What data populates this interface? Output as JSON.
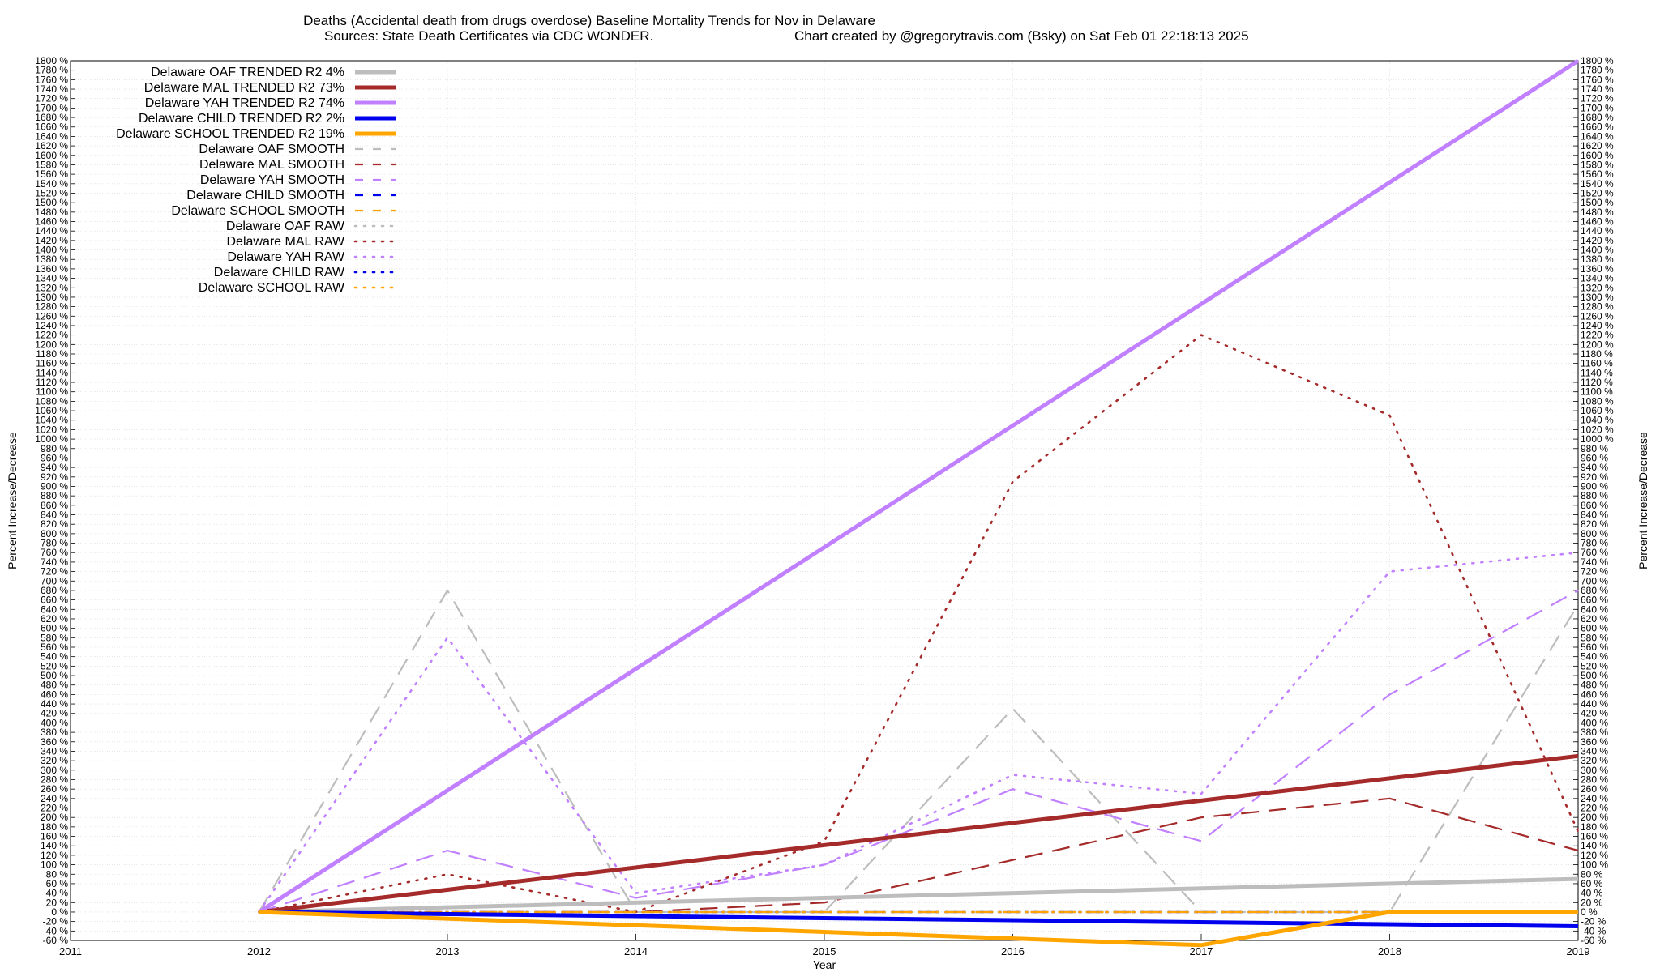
{
  "chart_data": {
    "type": "line",
    "title_line1": "Deaths (Accidental death from drugs overdose)  Baseline Mortality Trends for Nov in Delaware",
    "title_line2_left": "Sources: State Death Certificates via CDC WONDER.",
    "title_line2_right": "Chart created by @gregorytravis.com (Bsky) on Sat Feb 01 22:18:13 2025",
    "xlabel": "Year",
    "ylabel": "Percent Increase/Decrease",
    "xlim": [
      2011,
      2019
    ],
    "ylim": [
      -60,
      1800
    ],
    "x_ticks": [
      2011,
      2012,
      2013,
      2014,
      2015,
      2016,
      2017,
      2018,
      2019
    ],
    "y_tick_step": 20,
    "y_tick_suffix": " %",
    "series": [
      {
        "name": "Delaware OAF TRENDED R2  4%",
        "style": "solid",
        "color": "#bdbdbd",
        "x": [
          2012,
          2019
        ],
        "values": [
          0,
          70
        ]
      },
      {
        "name": "Delaware MAL TRENDED R2  73%",
        "style": "solid",
        "color": "#a52a2a",
        "x": [
          2012,
          2019
        ],
        "values": [
          0,
          330
        ]
      },
      {
        "name": "Delaware YAH TRENDED R2  74%",
        "style": "solid",
        "color": "#c080ff",
        "x": [
          2012,
          2019
        ],
        "values": [
          0,
          1800
        ]
      },
      {
        "name": "Delaware CHILD TRENDED R2  2%",
        "style": "solid",
        "color": "#0000ee",
        "x": [
          2012,
          2019
        ],
        "values": [
          0,
          -30
        ]
      },
      {
        "name": "Delaware SCHOOL TRENDED R2  19%",
        "style": "solid",
        "color": "#ffa500",
        "x": [
          2012,
          2017,
          2018,
          2019
        ],
        "values": [
          0,
          -70,
          0,
          0
        ]
      },
      {
        "name": "Delaware OAF SMOOTH",
        "style": "dash",
        "color": "#bdbdbd",
        "x": [
          2012,
          2013,
          2014,
          2015,
          2016,
          2017,
          2018,
          2019
        ],
        "values": [
          0,
          680,
          0,
          0,
          430,
          0,
          0,
          650
        ]
      },
      {
        "name": "Delaware MAL SMOOTH",
        "style": "dash",
        "color": "#a52a2a",
        "x": [
          2012,
          2013,
          2014,
          2015,
          2016,
          2017,
          2018,
          2019
        ],
        "values": [
          0,
          0,
          0,
          20,
          110,
          200,
          240,
          130
        ]
      },
      {
        "name": "Delaware YAH SMOOTH",
        "style": "dash",
        "color": "#c080ff",
        "x": [
          2012,
          2013,
          2014,
          2015,
          2016,
          2017,
          2018,
          2019
        ],
        "values": [
          0,
          130,
          30,
          100,
          260,
          150,
          460,
          680
        ]
      },
      {
        "name": "Delaware CHILD SMOOTH",
        "style": "dash",
        "color": "#0000ee",
        "x": [
          2012,
          2019
        ],
        "values": [
          0,
          0
        ]
      },
      {
        "name": "Delaware SCHOOL SMOOTH",
        "style": "dash",
        "color": "#ffa500",
        "x": [
          2012,
          2019
        ],
        "values": [
          0,
          0
        ]
      },
      {
        "name": "Delaware OAF RAW",
        "style": "dot",
        "color": "#bdbdbd",
        "x": [
          2012,
          2019
        ],
        "values": [
          0,
          0
        ]
      },
      {
        "name": "Delaware MAL RAW",
        "style": "dot",
        "color": "#a52a2a",
        "x": [
          2012,
          2013,
          2014,
          2015,
          2016,
          2017,
          2018,
          2019
        ],
        "values": [
          0,
          80,
          0,
          150,
          910,
          1220,
          1050,
          170
        ]
      },
      {
        "name": "Delaware YAH RAW",
        "style": "dot",
        "color": "#c080ff",
        "x": [
          2012,
          2013,
          2014,
          2015,
          2016,
          2017,
          2018,
          2019
        ],
        "values": [
          0,
          580,
          40,
          100,
          290,
          250,
          720,
          760
        ]
      },
      {
        "name": "Delaware CHILD RAW",
        "style": "dot",
        "color": "#0000ee",
        "x": [
          2012,
          2019
        ],
        "values": [
          0,
          0
        ]
      },
      {
        "name": "Delaware SCHOOL RAW",
        "style": "dot",
        "color": "#ffa500",
        "x": [
          2012,
          2019
        ],
        "values": [
          0,
          0
        ]
      }
    ],
    "legend_position": "top-left",
    "grid": true
  }
}
